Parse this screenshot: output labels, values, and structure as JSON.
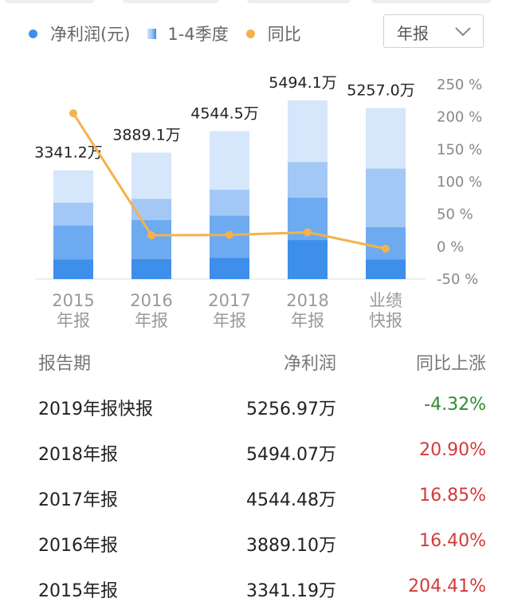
{
  "legend": {
    "net_profit": "净利润(元)",
    "quarters": "1-4季度",
    "yoy": "同比"
  },
  "period_select": {
    "value": "年报"
  },
  "chart_data": {
    "type": "bar",
    "categories": [
      [
        "2015",
        "年报"
      ],
      [
        "2016",
        "年报"
      ],
      [
        "2017",
        "年报"
      ],
      [
        "2018",
        "年报"
      ],
      [
        "业绩",
        "快报"
      ]
    ],
    "series": [
      {
        "name": "净利润(元)",
        "values": [
          3341.2,
          3889.1,
          4544.5,
          5494.1,
          5257.0
        ],
        "labels": [
          "3341.2万",
          "3889.1万",
          "4544.5万",
          "5494.1万",
          "5257.0万"
        ]
      },
      {
        "name": "1-4季度",
        "stacked_quarters": [
          [
            600,
            1050,
            700,
            991.2
          ],
          [
            620,
            1200,
            650,
            1419.1
          ],
          [
            650,
            1300,
            800,
            1794.5
          ],
          [
            1200,
            1300,
            1100,
            1894.1
          ],
          [
            600,
            1000,
            1800,
            1857.0
          ]
        ]
      },
      {
        "name": "同比",
        "values": [
          204.41,
          16.4,
          16.85,
          20.9,
          -4.32
        ]
      }
    ],
    "y_right_ticks": [
      "250 %",
      "200 %",
      "150 %",
      "100 %",
      "50 %",
      "0 %",
      "-50 %"
    ],
    "y_right_range": [
      -50,
      250
    ],
    "colors": {
      "q1": "#3d8fea",
      "q2": "#6eaaf0",
      "q3": "#a3c8f6",
      "q4": "#d6e6fb",
      "line": "#f4b24a"
    }
  },
  "table": {
    "headers": [
      "报告期",
      "净利润",
      "同比上涨"
    ],
    "rows": [
      {
        "period": "2019年报快报",
        "profit": "5256.97万",
        "yoy": "-4.32%",
        "trend": "down"
      },
      {
        "period": "2018年报",
        "profit": "5494.07万",
        "yoy": "20.90%",
        "trend": "up"
      },
      {
        "period": "2017年报",
        "profit": "4544.48万",
        "yoy": "16.85%",
        "trend": "up"
      },
      {
        "period": "2016年报",
        "profit": "3889.10万",
        "yoy": "16.40%",
        "trend": "up"
      },
      {
        "period": "2015年报",
        "profit": "3341.19万",
        "yoy": "204.41%",
        "trend": "up"
      }
    ]
  }
}
